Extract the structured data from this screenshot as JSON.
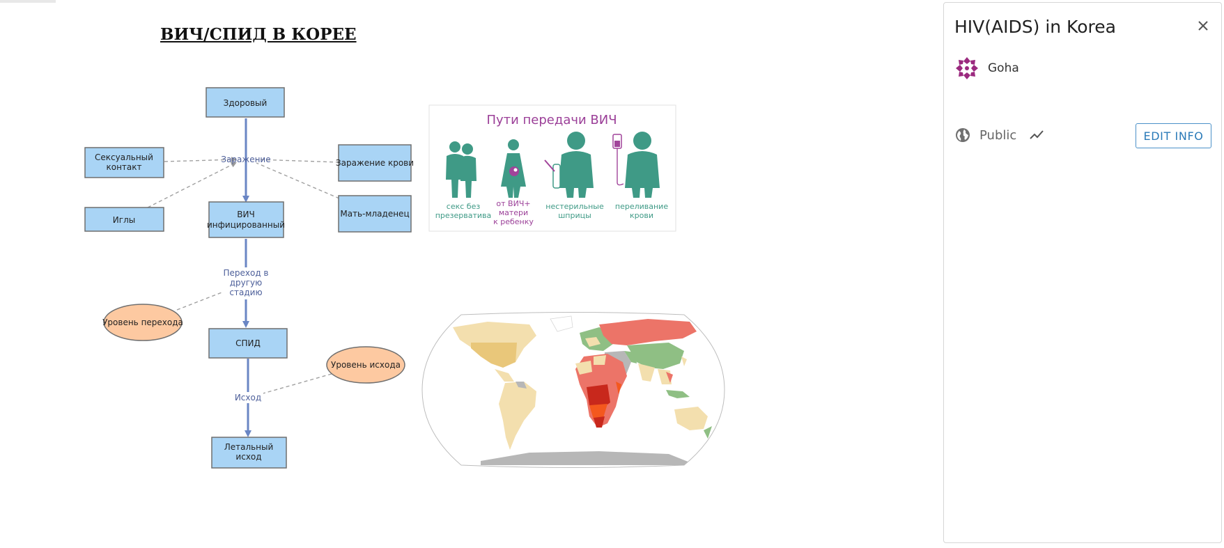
{
  "model": {
    "title": "ВИЧ/СПИД В КОРЕЕ"
  },
  "diagram": {
    "stocks": {
      "healthy": "Здоровый",
      "hiv_infected": [
        "ВИЧ",
        "инфицированный"
      ],
      "aids": "СПИД",
      "death": [
        "Летальный",
        "исход"
      ]
    },
    "flows": {
      "infection": "Заражение",
      "transition": [
        "Переход в",
        "другую",
        "стадию"
      ],
      "outcome": "Исход"
    },
    "variables": {
      "sexual_contact": [
        "Сексуальный",
        "контакт"
      ],
      "needles": "Иглы",
      "blood_infection": "Заражение крови",
      "mother_infant": "Мать-младенец",
      "transition_rate": "Уровень перехода",
      "outcome_rate": "Уровень исхода"
    }
  },
  "transmission_image": {
    "title": "Пути передачи ВИЧ",
    "captions": [
      [
        "секс без",
        "презерватива"
      ],
      [
        "от ВИЧ+",
        "матери",
        "к ребенку"
      ],
      [
        "нестерильные",
        "шприцы"
      ],
      [
        "переливание",
        "крови"
      ]
    ],
    "colors": {
      "figure": "#3f9a86",
      "accent": "#a1449a",
      "teal_text": "#3f9a86",
      "purple_text": "#9b3f98"
    }
  },
  "world_map": {
    "colors": {
      "ocean": "#ffffff",
      "low": "#f3dfae",
      "mid": "#e9c77a",
      "green": "#8fbf84",
      "red": "#ec7468",
      "dark_red": "#c8281c",
      "orange": "#f4581e",
      "gray": "#b7b7b7"
    }
  },
  "panel": {
    "title": "HIV(AIDS) in Korea",
    "author": "Goha",
    "access": "Public",
    "edit_button": "EDIT INFO",
    "icons": {
      "close": "close-icon",
      "globe": "globe-icon",
      "trend": "trend-icon",
      "avatar": "avatar-icon"
    }
  }
}
